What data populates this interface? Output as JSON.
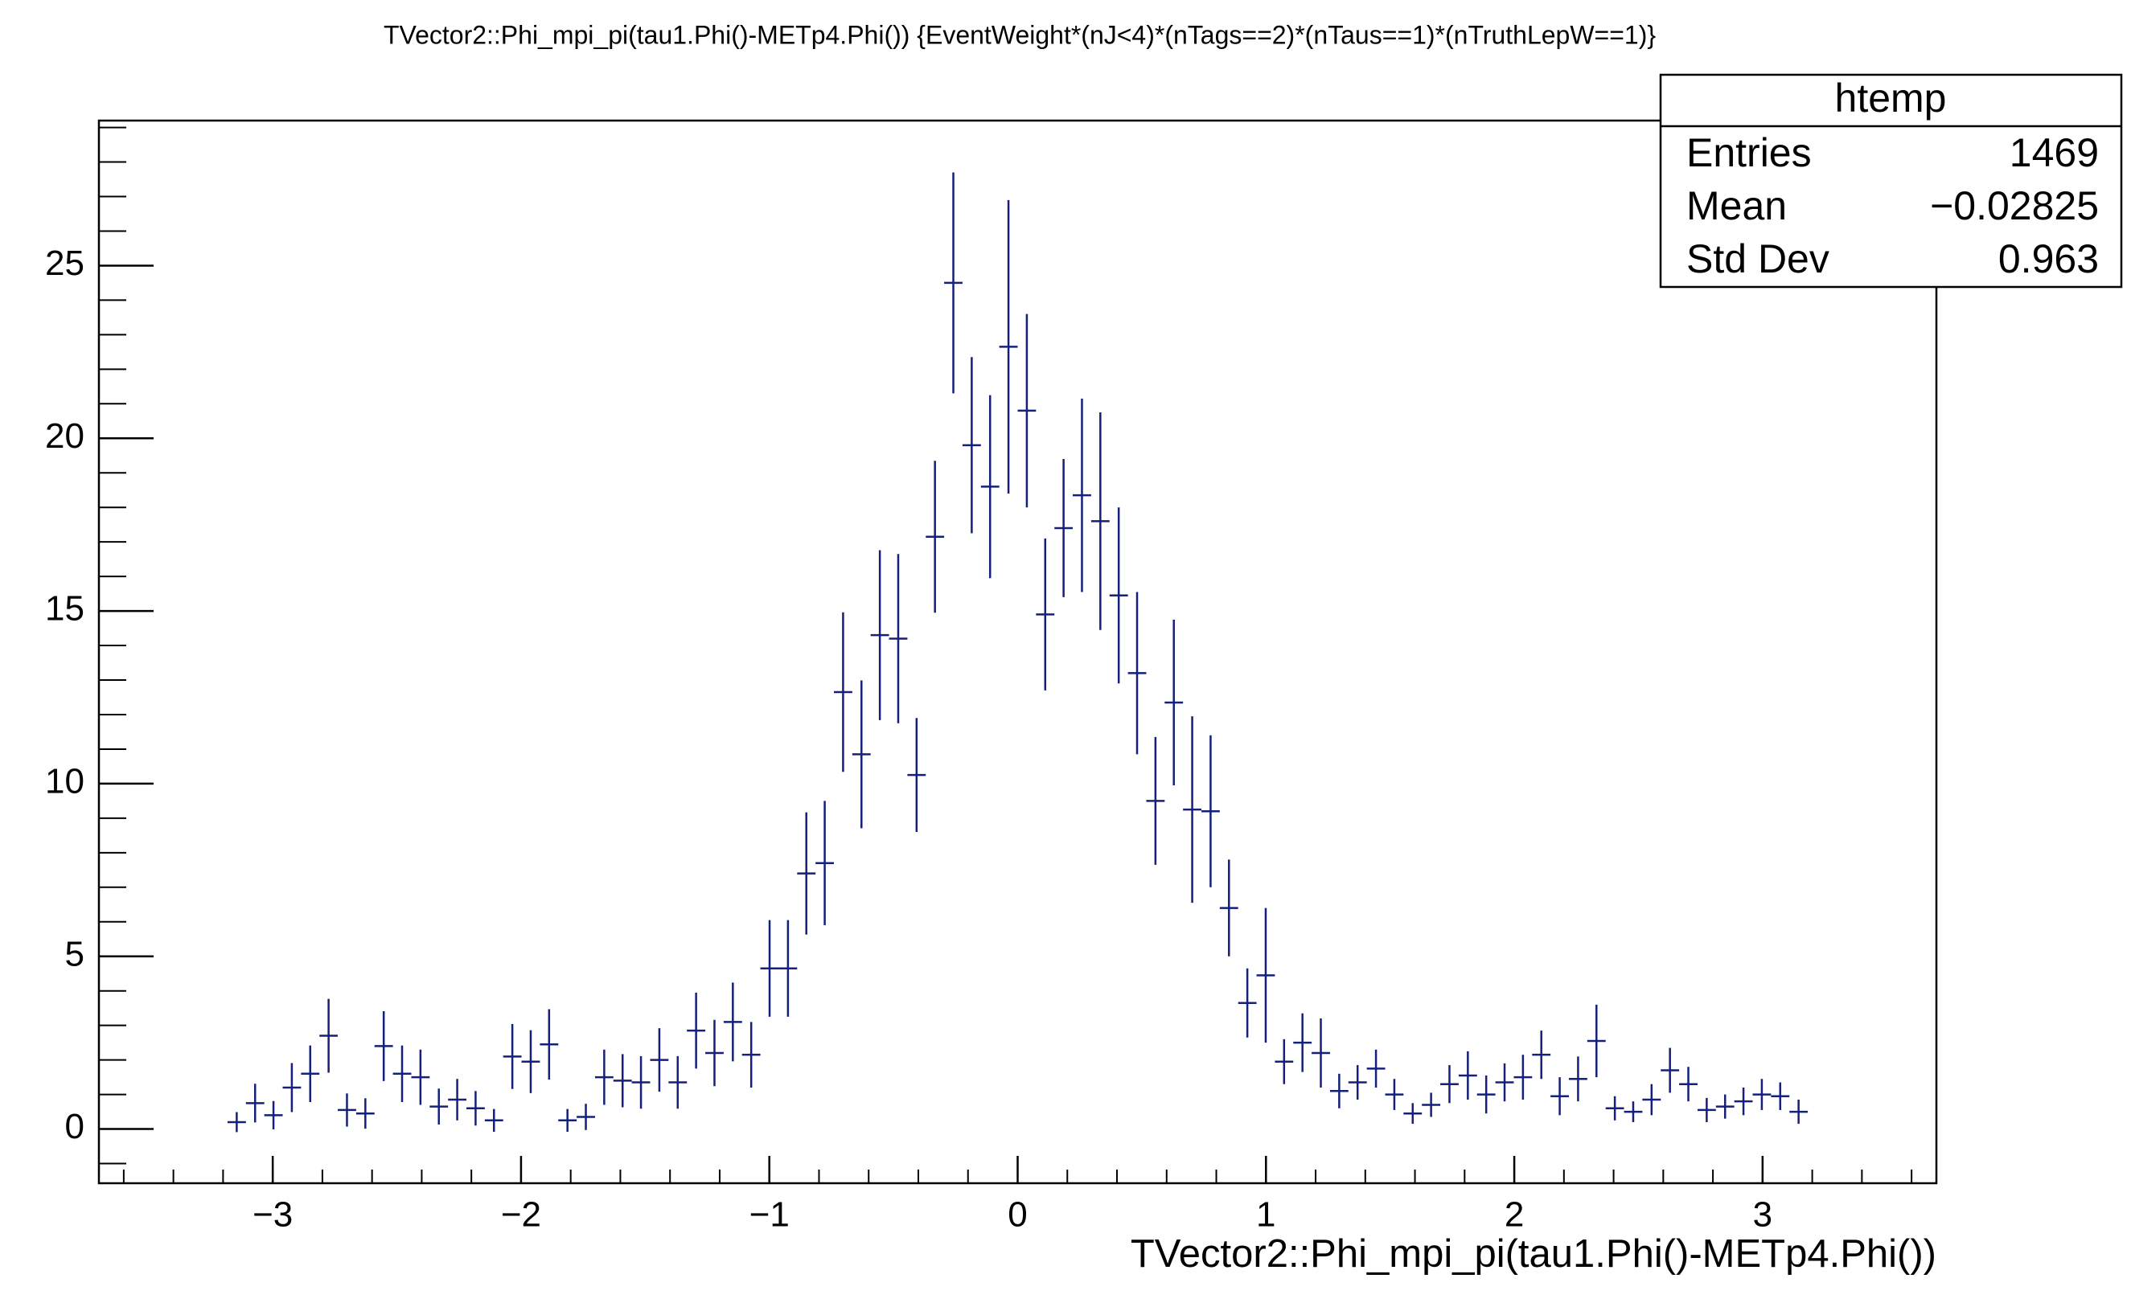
{
  "chart_data": {
    "type": "errorbar",
    "title": "TVector2::Phi_mpi_pi(tau1.Phi()-METp4.Phi()) {EventWeight*(nJ<4)*(nTags==2)*(nTaus==1)*(nTruthLepW==1)}",
    "x_label": "TVector2::Phi_mpi_pi(tau1.Phi()-METp4.Phi())",
    "color": "#14207a",
    "x": [
      -3.145,
      -3.071,
      -2.997,
      -2.923,
      -2.849,
      -2.775,
      -2.701,
      -2.627,
      -2.553,
      -2.479,
      -2.405,
      -2.331,
      -2.257,
      -2.183,
      -2.109,
      -2.035,
      -1.961,
      -1.887,
      -1.813,
      -1.739,
      -1.665,
      -1.591,
      -1.517,
      -1.443,
      -1.369,
      -1.295,
      -1.221,
      -1.147,
      -1.073,
      -0.999,
      -0.925,
      -0.851,
      -0.777,
      -0.703,
      -0.629,
      -0.555,
      -0.481,
      -0.407,
      -0.333,
      -0.259,
      -0.185,
      -0.111,
      -0.037,
      0.037,
      0.111,
      0.185,
      0.259,
      0.333,
      0.407,
      0.481,
      0.555,
      0.629,
      0.703,
      0.777,
      0.851,
      0.925,
      0.999,
      1.073,
      1.147,
      1.221,
      1.295,
      1.369,
      1.443,
      1.517,
      1.591,
      1.665,
      1.739,
      1.813,
      1.887,
      1.961,
      2.035,
      2.109,
      2.183,
      2.257,
      2.331,
      2.405,
      2.479,
      2.553,
      2.627,
      2.701,
      2.775,
      2.849,
      2.923,
      2.997,
      3.071,
      3.145
    ],
    "values": [
      0.2,
      0.75,
      0.4,
      1.2,
      1.6,
      2.7,
      0.55,
      0.45,
      2.4,
      1.6,
      1.5,
      0.65,
      0.85,
      0.6,
      0.25,
      2.1,
      1.95,
      2.45,
      0.25,
      0.35,
      1.5,
      1.4,
      1.35,
      2.0,
      1.35,
      2.85,
      2.2,
      3.1,
      2.15,
      4.65,
      4.65,
      7.4,
      7.7,
      12.65,
      10.85,
      14.3,
      14.2,
      10.25,
      17.15,
      24.5,
      19.8,
      18.6,
      22.65,
      20.8,
      14.9,
      17.4,
      18.35,
      17.6,
      15.45,
      13.2,
      9.5,
      12.35,
      9.25,
      9.2,
      6.4,
      3.65,
      4.45,
      1.95,
      2.5,
      2.2,
      1.1,
      1.35,
      1.75,
      1.0,
      0.45,
      0.7,
      1.3,
      1.55,
      1.0,
      1.35,
      1.5,
      2.15,
      0.95,
      1.45,
      2.55,
      0.6,
      0.5,
      0.85,
      1.7,
      1.3,
      0.55,
      0.65,
      0.8,
      1.0,
      0.95,
      0.5
    ],
    "errors": [
      0.29,
      0.56,
      0.41,
      0.71,
      0.82,
      1.07,
      0.48,
      0.44,
      1.01,
      0.82,
      0.8,
      0.52,
      0.6,
      0.5,
      0.33,
      0.94,
      0.91,
      1.02,
      0.33,
      0.38,
      0.8,
      0.77,
      0.76,
      0.92,
      0.76,
      1.1,
      0.96,
      1.14,
      0.95,
      1.4,
      1.4,
      1.77,
      1.8,
      2.31,
      2.14,
      2.46,
      2.45,
      1.65,
      2.2,
      3.2,
      2.55,
      2.65,
      4.25,
      2.8,
      2.2,
      2.0,
      2.8,
      3.15,
      2.55,
      2.35,
      1.85,
      2.4,
      2.7,
      2.2,
      1.4,
      1.0,
      1.95,
      0.65,
      0.85,
      1.0,
      0.5,
      0.5,
      0.55,
      0.45,
      0.3,
      0.35,
      0.55,
      0.7,
      0.55,
      0.55,
      0.65,
      0.7,
      0.55,
      0.65,
      1.05,
      0.35,
      0.3,
      0.45,
      0.65,
      0.5,
      0.35,
      0.35,
      0.4,
      0.45,
      0.4,
      0.35
    ],
    "xlim": [
      -3.7,
      3.7
    ],
    "ylim": [
      -1.57,
      29.2
    ],
    "xticks": [
      {
        "value": -3,
        "label": "−3"
      },
      {
        "value": -2,
        "label": "−2"
      },
      {
        "value": -1,
        "label": "−1"
      },
      0,
      1,
      2,
      3
    ],
    "yticks": [
      0,
      5,
      10,
      15,
      20,
      25
    ],
    "stats_box": {
      "title": "htemp",
      "rows": [
        {
          "label": "Entries",
          "value": "1469"
        },
        {
          "label": "Mean",
          "value": "−0.02825"
        },
        {
          "label": "Std Dev",
          "value": "0.963"
        }
      ]
    }
  }
}
